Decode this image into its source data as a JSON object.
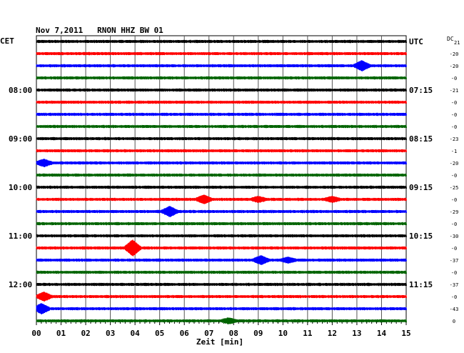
{
  "header": {
    "title": "Nov 7,2011   RNON HHZ BW 01",
    "left_zone": "CET",
    "right_zone": "UTC",
    "dc_label": "DC",
    "dc_first": "21"
  },
  "chart_data": {
    "type": "line",
    "title": "Nov 7,2011   RNON HHZ BW 01",
    "xlabel": "Zeit [min]",
    "xlim": [
      0,
      15
    ],
    "x_ticks": [
      "00",
      "01",
      "02",
      "03",
      "04",
      "05",
      "06",
      "07",
      "08",
      "09",
      "10",
      "11",
      "12",
      "13",
      "14",
      "15"
    ],
    "colors": [
      "#000000",
      "#ff0000",
      "#0000ff",
      "#006400"
    ],
    "left_time_labels": [
      {
        "row": 4,
        "text": "08:00"
      },
      {
        "row": 8,
        "text": "09:00"
      },
      {
        "row": 12,
        "text": "10:00"
      },
      {
        "row": 16,
        "text": "11:00"
      },
      {
        "row": 20,
        "text": "12:00"
      }
    ],
    "right_time_labels": [
      {
        "row": 0,
        "text": "UTC"
      },
      {
        "row": 4,
        "text": "07:15"
      },
      {
        "row": 8,
        "text": "08:15"
      },
      {
        "row": 12,
        "text": "09:15"
      },
      {
        "row": 16,
        "text": "10:15"
      },
      {
        "row": 20,
        "text": "11:15"
      }
    ],
    "dc_offsets": [
      "-20",
      "-20",
      "-0",
      "-21",
      "-0",
      "-0",
      "-0",
      "-23",
      "-1",
      "-20",
      "-0",
      "-25",
      "-0",
      "-29",
      "-0",
      "-30",
      "-0",
      "-37",
      "-0",
      "-37",
      "-0",
      "-43",
      "0"
    ],
    "events": [
      {
        "row": 2,
        "minute": 13.2,
        "amp": 6
      },
      {
        "row": 10,
        "minute": 0.3,
        "amp": 4
      },
      {
        "row": 13,
        "minute": 6.8,
        "amp": 5
      },
      {
        "row": 13,
        "minute": 9.0,
        "amp": 3
      },
      {
        "row": 13,
        "minute": 12.0,
        "amp": 3
      },
      {
        "row": 14,
        "minute": 5.4,
        "amp": 6
      },
      {
        "row": 17,
        "minute": 3.9,
        "amp": 10
      },
      {
        "row": 18,
        "minute": 9.1,
        "amp": 5
      },
      {
        "row": 18,
        "minute": 10.2,
        "amp": 3
      },
      {
        "row": 21,
        "minute": 0.3,
        "amp": 5
      },
      {
        "row": 22,
        "minute": 0.2,
        "amp": 6
      },
      {
        "row": 23,
        "minute": 7.8,
        "amp": 3
      }
    ],
    "grid": true
  }
}
